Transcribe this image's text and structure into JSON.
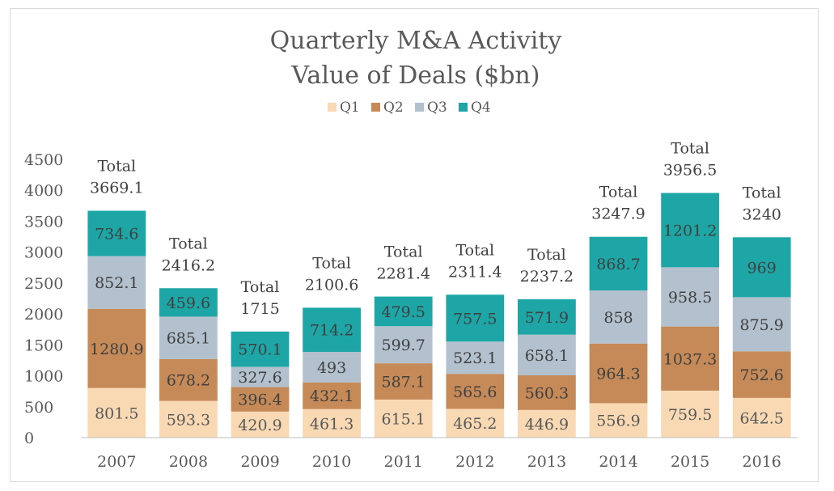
{
  "chart_data": {
    "type": "bar",
    "stacked": true,
    "title": "Quarterly M&A Activity",
    "subtitle": "Value of Deals ($bn)",
    "legend_position": "top",
    "categories": [
      "2007",
      "2008",
      "2009",
      "2010",
      "2011",
      "2012",
      "2013",
      "2014",
      "2015",
      "2016"
    ],
    "series": [
      {
        "name": "Q1",
        "color": "#f8d9b4",
        "values": [
          801.5,
          593.3,
          420.9,
          461.3,
          615.1,
          465.2,
          446.9,
          556.9,
          759.5,
          642.5
        ]
      },
      {
        "name": "Q2",
        "color": "#c58a57",
        "values": [
          1280.9,
          678.2,
          396.4,
          432.1,
          587.1,
          565.6,
          560.3,
          964.3,
          1037.3,
          752.6
        ]
      },
      {
        "name": "Q3",
        "color": "#b2c1cd",
        "values": [
          852.1,
          685.1,
          327.6,
          493,
          599.7,
          523.1,
          658.1,
          858,
          958.5,
          875.9
        ]
      },
      {
        "name": "Q4",
        "color": "#1ea5a5",
        "values": [
          734.6,
          459.6,
          570.1,
          714.2,
          479.5,
          757.5,
          571.9,
          868.7,
          1201.2,
          969
        ]
      }
    ],
    "totals_label": "Total",
    "totals": [
      "3669.1",
      "2416.2",
      "1715",
      "2100.6",
      "2281.4",
      "2311.4",
      "2237.2",
      "3247.9",
      "3956.5",
      "3240"
    ],
    "ylim": [
      0,
      4500
    ],
    "yticks": [
      0,
      500,
      1000,
      1500,
      2000,
      2500,
      3000,
      3500,
      4000,
      4500
    ],
    "grid": false
  }
}
